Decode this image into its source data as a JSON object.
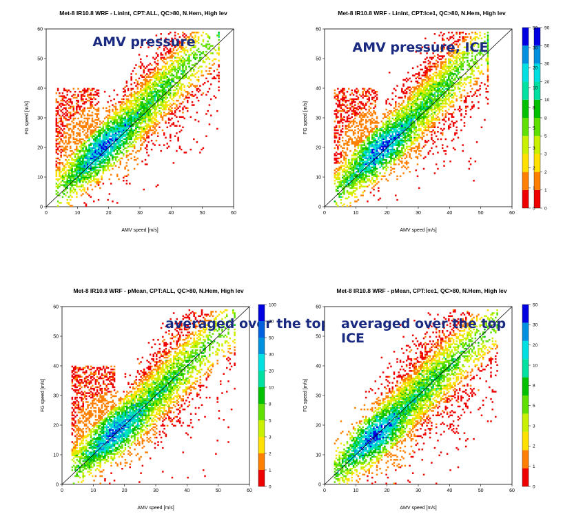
{
  "chart_data": [
    {
      "type": "heatmap",
      "title": "Met-8 IR10.8 WRF - LinInt, CPT:ALL, QC>80, N.Hem, High lev",
      "annotation": "AMV pressure",
      "xlabel": "AMV speed [m/s]",
      "ylabel": "FG speed [m/s]",
      "xlim": [
        0,
        60
      ],
      "ylim": [
        0,
        60
      ],
      "xticks": [
        "0",
        "10",
        "20",
        "30",
        "40",
        "50",
        "60"
      ],
      "yticks": [
        "0",
        "10",
        "20",
        "30",
        "40",
        "50",
        "60"
      ],
      "colorbar_levels": [
        "0",
        "1",
        "2",
        "3",
        "5",
        "8",
        "10",
        "20",
        "30",
        "50",
        "90"
      ],
      "colorbar_colors": [
        "#ee0000",
        "#ff8000",
        "#ffe000",
        "#c8f000",
        "#60e000",
        "#00c000",
        "#00e0a0",
        "#00e0e0",
        "#0090e0",
        "#0000e0"
      ],
      "diagonal": "y = x",
      "scatter_profile": {
        "x_peak": 18,
        "y_peak": 21,
        "x_max": 55,
        "bulge_at_low_x": true
      }
    },
    {
      "type": "heatmap",
      "title": "Met-8 IR10.8 WRF - LinInt, CPT:Ice1, QC>80, N.Hem, High lev",
      "annotation": "AMV pressure, ICE",
      "xlabel": "AMV speed [m/s]",
      "ylabel": "FG speed [m/s]",
      "xlim": [
        0,
        60
      ],
      "ylim": [
        0,
        60
      ],
      "xticks": [
        "0",
        "10",
        "20",
        "30",
        "40",
        "50",
        "60"
      ],
      "yticks": [
        "0",
        "10",
        "20",
        "30",
        "40",
        "50",
        "60"
      ],
      "colorbar_levels": [
        "0",
        "1",
        "2",
        "3",
        "5",
        "8",
        "10",
        "20",
        "30",
        "50"
      ],
      "colorbar_colors": [
        "#ee0000",
        "#ff8000",
        "#ffe000",
        "#c8f000",
        "#60e000",
        "#00c000",
        "#00e0a0",
        "#00e0e0",
        "#0090e0",
        "#0000e0"
      ],
      "diagonal": "y = x",
      "scatter_profile": {
        "x_peak": 18,
        "y_peak": 20,
        "x_max": 52,
        "bulge_at_low_x": true
      }
    },
    {
      "type": "heatmap",
      "title": "Met-8 IR10.8 WRF - pMean, CPT:ALL, QC>80, N.Hem, High lev",
      "annotation": "averaged over the top",
      "xlabel": "AMV speed [m/s]",
      "ylabel": "FG speed [m/s]",
      "xlim": [
        0,
        60
      ],
      "ylim": [
        0,
        60
      ],
      "xticks": [
        "0",
        "10",
        "20",
        "30",
        "40",
        "50",
        "60"
      ],
      "yticks": [
        "0",
        "10",
        "20",
        "30",
        "40",
        "50",
        "60"
      ],
      "colorbar_levels": [
        "0",
        "1",
        "2",
        "3",
        "5",
        "8",
        "10",
        "20",
        "30",
        "50",
        "90",
        "100"
      ],
      "colorbar_colors": [
        "#ee0000",
        "#ff8000",
        "#ffe000",
        "#c8f000",
        "#60e000",
        "#00c000",
        "#00e0a0",
        "#00e0e0",
        "#0090e0",
        "#0060e0",
        "#0000e0"
      ],
      "diagonal": "y = x",
      "scatter_profile": {
        "x_peak": 17,
        "y_peak": 18,
        "x_max": 55,
        "bulge_at_low_x": true
      }
    },
    {
      "type": "heatmap",
      "title": "Met-8 IR10.8 WRF - pMean, CPT:Ice1, QC>80, N.Hem, High lev",
      "annotation": "averaged over the top\nICE",
      "xlabel": "AMV speed [m/s]",
      "ylabel": "FG speed [m/s]",
      "xlim": [
        0,
        60
      ],
      "ylim": [
        0,
        60
      ],
      "xticks": [
        "0",
        "10",
        "20",
        "30",
        "40",
        "50",
        "60"
      ],
      "yticks": [
        "0",
        "10",
        "20",
        "30",
        "40",
        "50",
        "60"
      ],
      "colorbar_levels": [
        "0",
        "1",
        "2",
        "3",
        "5",
        "8",
        "10",
        "20",
        "30",
        "50"
      ],
      "colorbar_colors": [
        "#ee0000",
        "#ff8000",
        "#ffe000",
        "#c8f000",
        "#60e000",
        "#00c000",
        "#00e0a0",
        "#00e0e0",
        "#0090e0",
        "#0000e0"
      ],
      "diagonal": "y = x",
      "scatter_profile": {
        "x_peak": 16,
        "y_peak": 16,
        "x_max": 55,
        "bulge_at_low_x": false
      }
    }
  ]
}
